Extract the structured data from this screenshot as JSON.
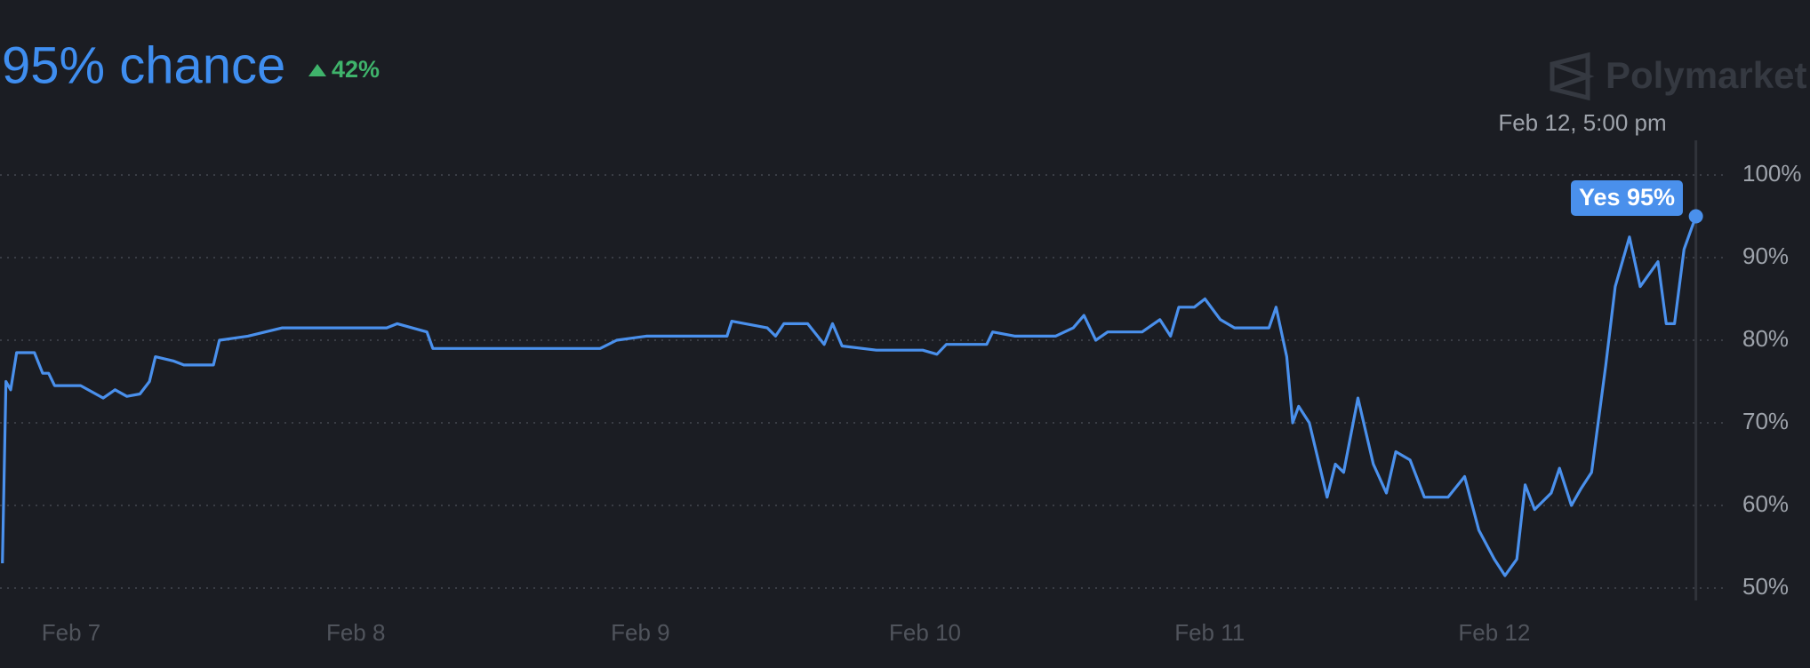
{
  "header": {
    "headline": "95% chance",
    "change": "42%",
    "brand": "Polymarket"
  },
  "chart_data": {
    "type": "line",
    "hover": {
      "date": "Feb 12, 5:00 pm",
      "label": "Yes 95%"
    },
    "x": [
      -5.8,
      -5.5,
      -5.1,
      -4.6,
      -3.1,
      -2.4,
      -1.9,
      -1.4,
      0.8,
      2.7,
      3.7,
      4.7,
      5.8,
      6.6,
      7.1,
      8.6,
      9.5,
      12.0,
      12.5,
      14.9,
      17.8,
      26.6,
      27.5,
      30,
      30.5,
      44.6,
      46,
      48.5,
      55.3,
      55.7,
      58.7,
      59.4,
      60.1,
      62.1,
      63.5,
      64.2,
      65,
      67.9,
      71.8,
      73,
      73.8,
      77.2,
      77.7,
      79.6,
      83,
      84.5,
      85.4,
      86.4,
      87.4,
      90.3,
      91.8,
      92.7,
      93.4,
      94.7,
      95.6,
      96.9,
      98.1,
      101,
      101.6,
      102.5,
      103,
      103.5,
      104.4,
      105.9,
      106.6,
      107.3,
      108.5,
      109.8,
      110.9,
      111.7,
      112.9,
      114.1,
      116.1,
      117.5,
      118.7,
      120,
      120.9,
      121.9,
      122.6,
      123.4,
      124.8,
      125.5,
      126.5,
      127.3,
      128.2,
      129.4,
      130.2,
      131.4,
      132.3,
      133.8,
      134.5,
      135.2,
      136,
      137
    ],
    "series": [
      {
        "name": "Yes",
        "color": "#4a90ec",
        "values": [
          53,
          75,
          74,
          78.5,
          78.5,
          76,
          76,
          74.5,
          74.5,
          73,
          74,
          73.2,
          73.5,
          75,
          78,
          77.5,
          77,
          77,
          80,
          80.5,
          81.5,
          81.5,
          82,
          81,
          79,
          79,
          80,
          80.5,
          80.5,
          82.3,
          81.5,
          80.5,
          82,
          82,
          79.5,
          82,
          79.3,
          78.8,
          78.8,
          78.3,
          79.5,
          79.5,
          81,
          80.5,
          80.5,
          81.5,
          83,
          80,
          81,
          81,
          82.5,
          80.5,
          84,
          84,
          85,
          82.5,
          81.5,
          81.5,
          84,
          78,
          70,
          72,
          70,
          61,
          65,
          64,
          73,
          65,
          61.5,
          66.5,
          65.5,
          61,
          61,
          63.5,
          57,
          53.5,
          51.5,
          53.5,
          62.5,
          59.5,
          61.5,
          64.5,
          60,
          62,
          64,
          77,
          86.5,
          92.5,
          86.5,
          89.5,
          82,
          82,
          91,
          95
        ]
      }
    ],
    "xlim": [
      -6,
      139.5
    ],
    "xticks": [
      {
        "value": 0,
        "label": "Feb 7"
      },
      {
        "value": 24,
        "label": "Feb 8"
      },
      {
        "value": 48,
        "label": "Feb 9"
      },
      {
        "value": 72,
        "label": "Feb 10"
      },
      {
        "value": 96,
        "label": "Feb 11"
      },
      {
        "value": 120,
        "label": "Feb 12"
      }
    ],
    "ylim": [
      50,
      100
    ],
    "yticks": [
      {
        "value": 50,
        "label": "50%"
      },
      {
        "value": 60,
        "label": "60%"
      },
      {
        "value": 70,
        "label": "70%"
      },
      {
        "value": 80,
        "label": "80%"
      },
      {
        "value": 90,
        "label": "90%"
      },
      {
        "value": 100,
        "label": "100%"
      }
    ],
    "grid": true
  }
}
